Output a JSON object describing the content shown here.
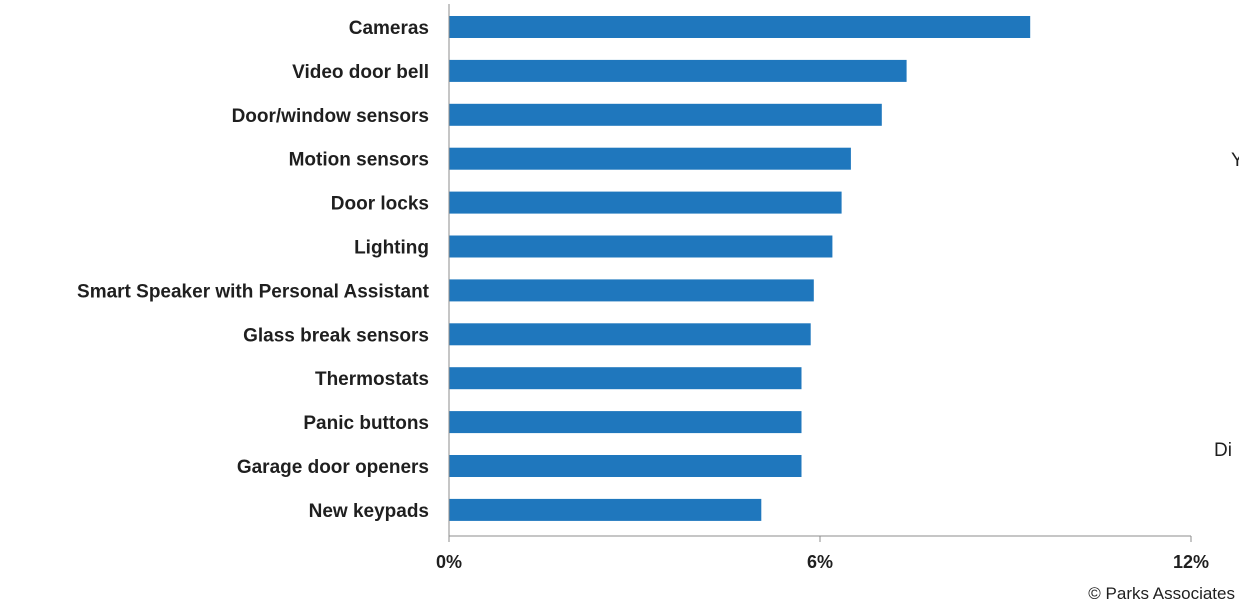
{
  "chart_data": {
    "type": "bar",
    "orientation": "horizontal",
    "categories": [
      "Cameras",
      "Video door bell",
      "Door/window sensors",
      "Motion sensors",
      "Door locks",
      "Lighting",
      "Smart Speaker with Personal Assistant",
      "Glass break sensors",
      "Thermostats",
      "Panic buttons",
      "Garage door openers",
      "New keypads"
    ],
    "values": [
      9.4,
      7.4,
      7.0,
      6.5,
      6.35,
      6.2,
      5.9,
      5.85,
      5.7,
      5.7,
      5.7,
      5.05
    ],
    "xlim": [
      0,
      12
    ],
    "xticks": [
      0,
      6,
      12
    ],
    "xtick_labels": [
      "0%",
      "6%",
      "12%"
    ],
    "bar_color": "#1f77bd",
    "grid": false
  },
  "fragments": {
    "right_edge_1": "Y",
    "right_edge_2": "Di"
  },
  "footer": {
    "copyright": "© Parks Associates"
  }
}
